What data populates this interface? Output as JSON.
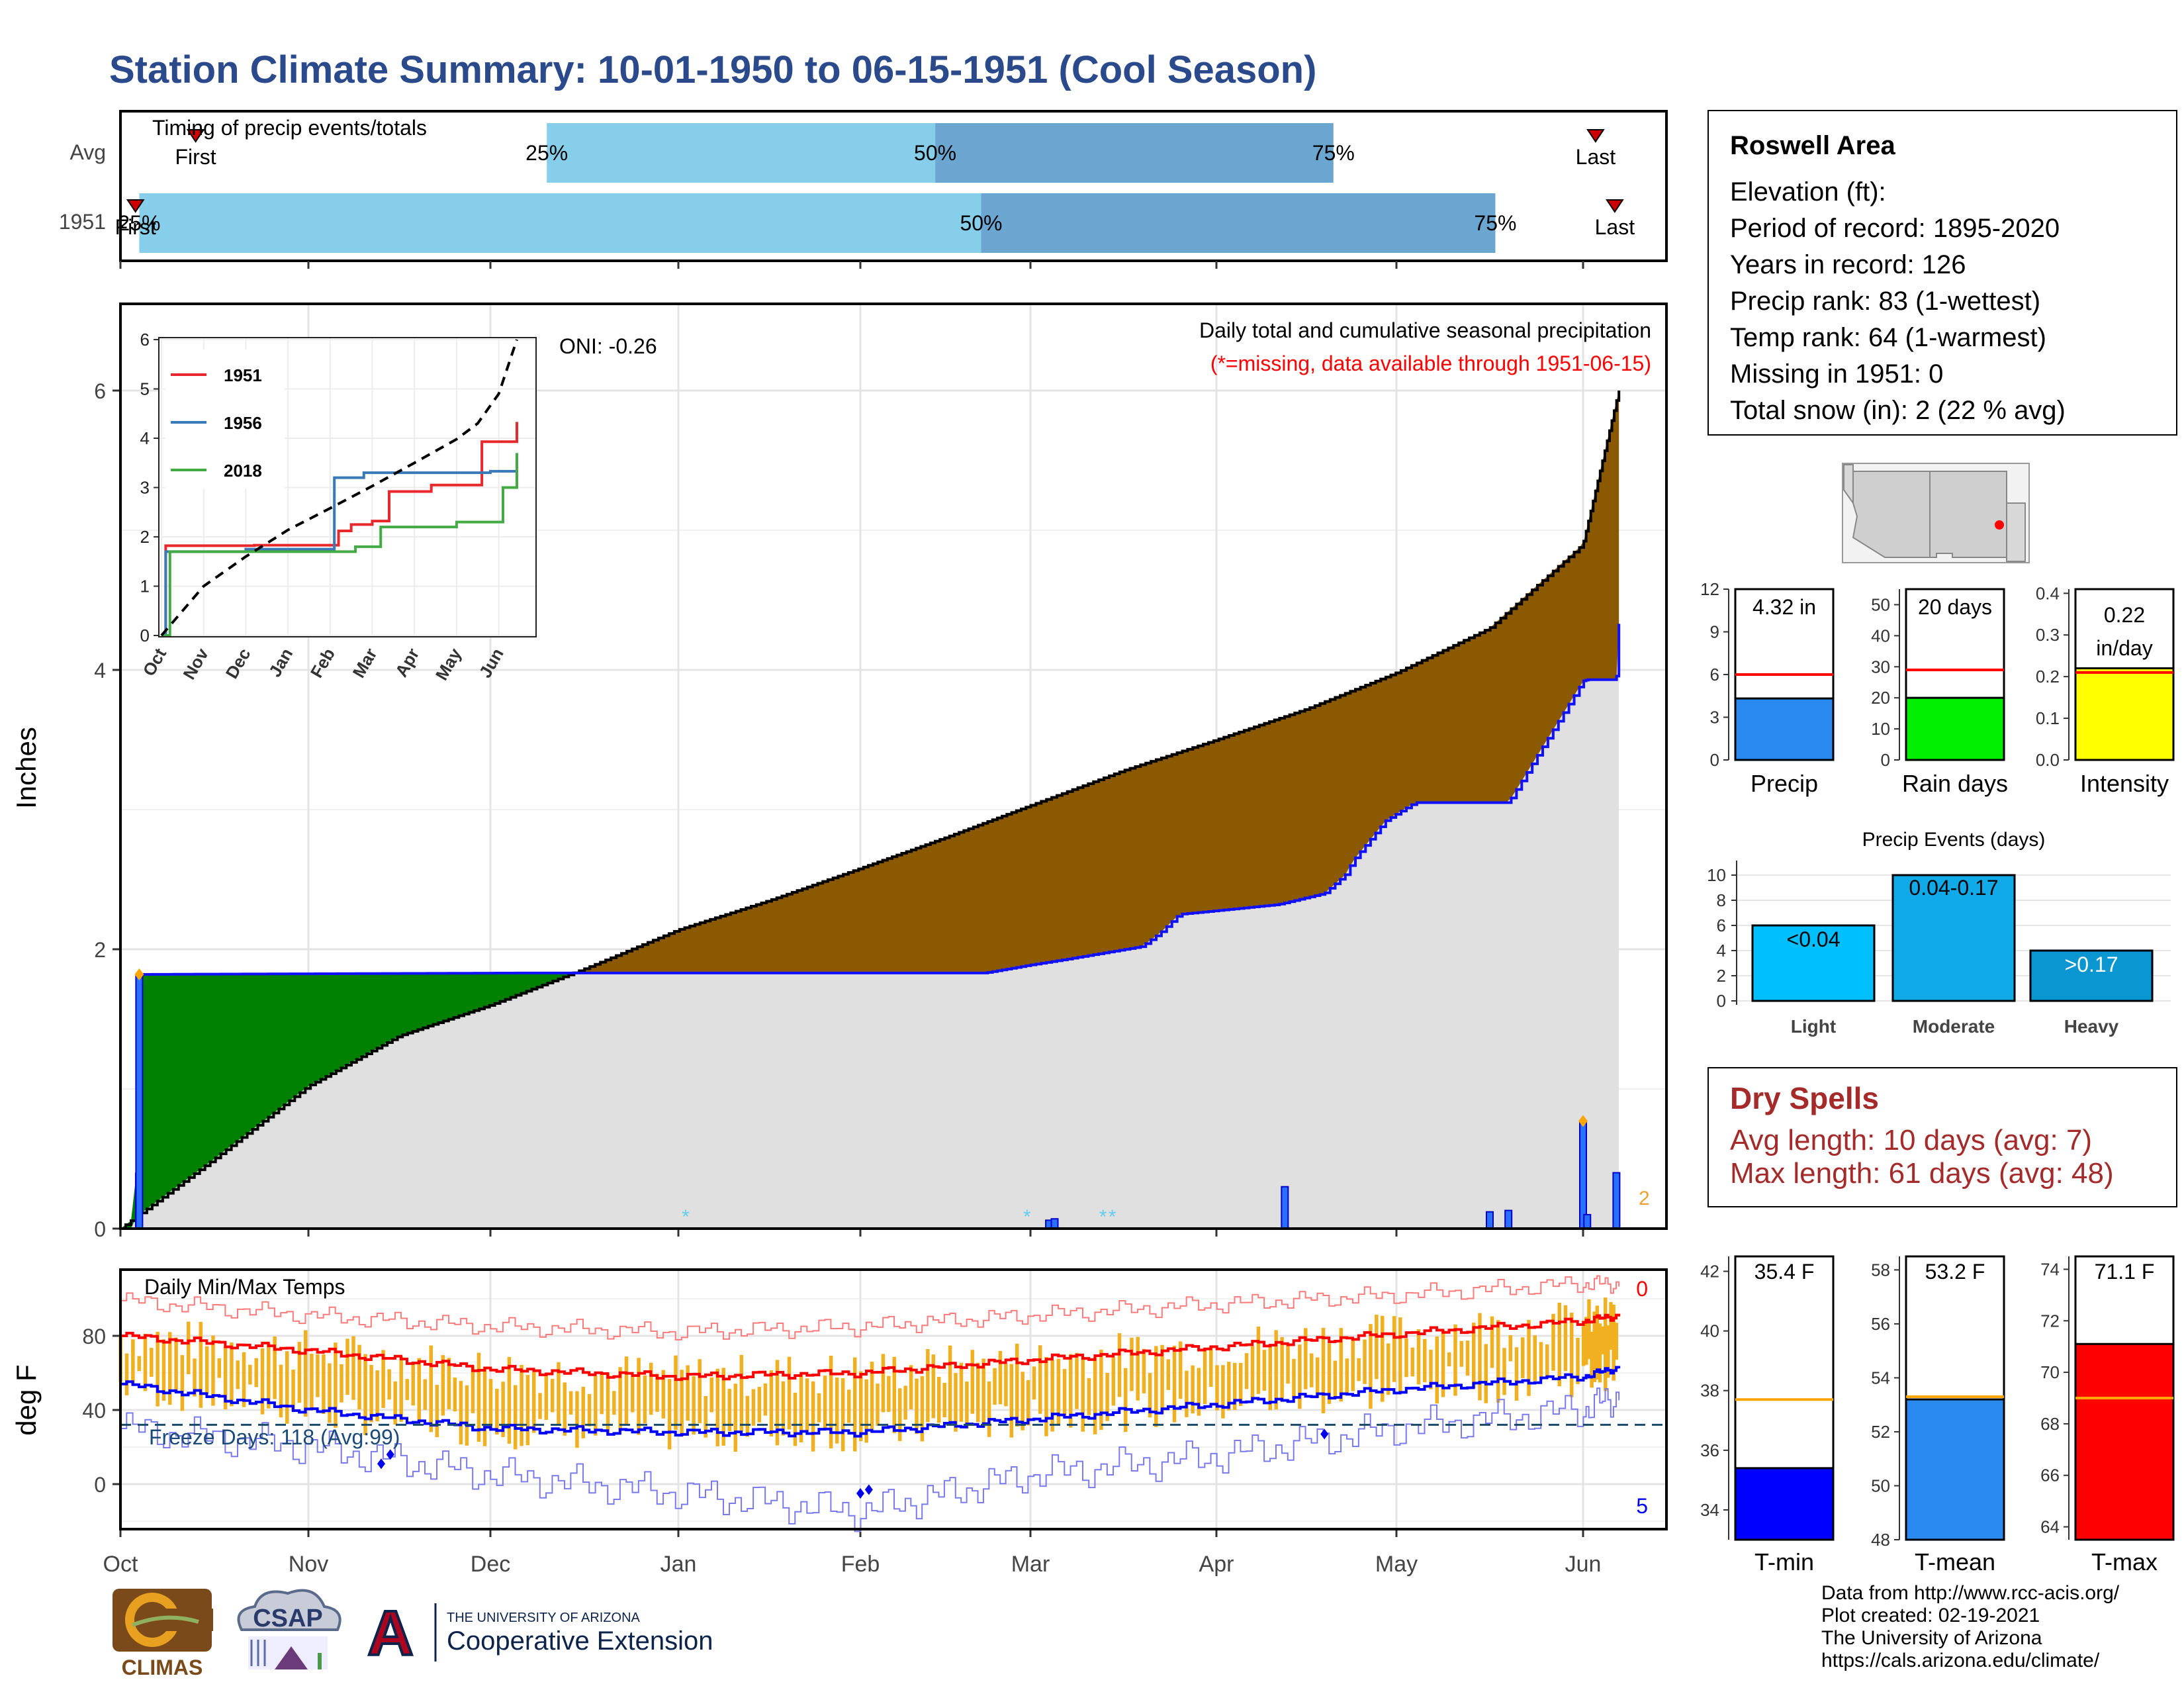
{
  "title": "Station Climate Summary: 10-01-1950 to 06-15-1951 (Cool Season)",
  "colors": {
    "title": "#2a4a8c",
    "light_blue": "#87ceeb",
    "mid_blue": "#6aa6cf",
    "brown": "#8b5a00",
    "green": "#008000",
    "gray": "#e0e0e0",
    "orange": "#f0b020",
    "red": "#ff0000",
    "blue": "#0000ff",
    "dark_red": "#a52a2a"
  },
  "timing": {
    "title": "Timing of precip events/totals",
    "rows": [
      "Avg",
      "1951"
    ],
    "first_label": "First",
    "last_label": "Last",
    "pct25": "25%",
    "pct50": "50%",
    "pct75": "75%",
    "avg_bar": [
      2.3,
      4.44,
      6.65
    ],
    "avg_first": 0.4,
    "avg_last": 8.15,
    "yr_bar": [
      0.1,
      4.71,
      7.53
    ],
    "yr_first": 0.08,
    "yr_last": 8.38
  },
  "precip": {
    "ylabel": "Inches",
    "oni": "ONI: -0.26",
    "label1": "Daily total and cumulative seasonal precipitation",
    "label2": "(*=missing, data available through 1951-06-15)",
    "corner_label": "2",
    "yticks": [
      "0",
      "2",
      "4",
      "6"
    ]
  },
  "inset": {
    "yticks": [
      "0",
      "1",
      "2",
      "3",
      "4",
      "5",
      "6"
    ],
    "xticks": [
      "Oct",
      "Nov",
      "Dec",
      "Jan",
      "Feb",
      "Mar",
      "Apr",
      "May",
      "Jun"
    ],
    "legend": [
      "1951",
      "1956",
      "2018"
    ]
  },
  "temps": {
    "title": "Daily Min/Max Temps",
    "ylabel": "deg F",
    "yticks": [
      "0",
      "40",
      "80"
    ],
    "freeze_label": "Freeze Days: 118 (Avg:99)",
    "top_count": "0",
    "bottom_count": "5"
  },
  "months": [
    "Oct",
    "Nov",
    "Dec",
    "Jan",
    "Feb",
    "Mar",
    "Apr",
    "May",
    "Jun"
  ],
  "station": {
    "name": "Roswell Area",
    "elevation": "Elevation (ft):",
    "period": "Period of record: 1895-2020",
    "years": "Years in record: 126",
    "precip_rank": "Precip rank: 83 (1-wettest)",
    "temp_rank": "Temp rank: 64 (1-warmest)",
    "missing": "Missing in 1951: 0",
    "snow": "Total snow (in): 2 (22 % avg)"
  },
  "minis": {
    "precip": {
      "label": "Precip",
      "value_text": "4.32 in",
      "yticks": [
        "0",
        "3",
        "6",
        "9",
        "12"
      ]
    },
    "raindays": {
      "label": "Rain days",
      "value_text": "20 days",
      "yticks": [
        "0",
        "10",
        "20",
        "30",
        "40",
        "50"
      ]
    },
    "intensity": {
      "label": "Intensity",
      "value_text1": "0.22",
      "value_text2": "in/day",
      "yticks": [
        "0.0",
        "0.1",
        "0.2",
        "0.3",
        "0.4"
      ]
    }
  },
  "events": {
    "title": "Precip Events (days)",
    "yticks": [
      "0",
      "2",
      "4",
      "6",
      "8",
      "10"
    ],
    "categories": [
      "Light",
      "Moderate",
      "Heavy"
    ],
    "bar_labels": [
      "<0.04",
      "0.04-0.17",
      ">0.17"
    ]
  },
  "dry_spells": {
    "title": "Dry Spells",
    "avg": "Avg length: 10 days (avg: 7)",
    "max": "Max length: 61 days (avg: 48)"
  },
  "temp_bars": {
    "tmin": {
      "label": "T-min",
      "value_text": "35.4 F",
      "yticks": [
        "34",
        "36",
        "38",
        "40",
        "42"
      ]
    },
    "tmean": {
      "label": "T-mean",
      "value_text": "53.2 F",
      "yticks": [
        "48",
        "50",
        "52",
        "54",
        "56",
        "58"
      ]
    },
    "tmax": {
      "label": "T-max",
      "value_text": "71.1 F",
      "yticks": [
        "64",
        "66",
        "68",
        "70",
        "72",
        "74"
      ]
    }
  },
  "credits": [
    "Data from http://www.rcc-acis.org/",
    "Plot created: 02-19-2021",
    "The University of Arizona",
    "https://cals.arizona.edu/climate/"
  ],
  "logos": {
    "climas": "CLIMAS",
    "csap": "CSAP",
    "ua_small": "THE UNIVERSITY OF ARIZONA",
    "ua_big": "Cooperative Extension",
    "ua_letter": "A"
  },
  "chart_data": [
    {
      "type": "bar",
      "title": "Timing of precip events/totals",
      "categories": [
        "Avg",
        "1951"
      ],
      "series": [
        {
          "name": "25%",
          "values": [
            2.3,
            0.1
          ]
        },
        {
          "name": "50%",
          "values": [
            4.44,
            4.71
          ]
        },
        {
          "name": "75%",
          "values": [
            6.65,
            7.53
          ]
        }
      ],
      "xlabel": "",
      "ylabel": ""
    },
    {
      "type": "area",
      "title": "Daily total and cumulative seasonal precipitation",
      "xlabel": "",
      "ylabel": "Inches",
      "ylim": [
        0,
        6.5
      ],
      "x_categories": [
        "Oct",
        "Nov",
        "Dec",
        "Jan",
        "Feb",
        "Mar",
        "Apr",
        "May",
        "Jun"
      ],
      "series": [
        {
          "name": "cumulative 1951 (blue line)",
          "x": [
            0,
            0.08,
            0.1,
            2.2,
            4.0,
            4.73,
            5.2,
            5.6,
            5.7,
            5.8,
            6.34,
            6.6,
            6.73,
            6.75,
            6.94,
            7.1,
            7.6,
            8.0,
            8.05,
            8.4,
            8.43
          ],
          "values": [
            0,
            0,
            1.82,
            1.83,
            1.83,
            1.83,
            1.93,
            2.02,
            2.12,
            2.25,
            2.32,
            2.4,
            2.55,
            2.62,
            2.92,
            3.05,
            3.05,
            3.92,
            3.93,
            3.93,
            4.33
          ]
        },
        {
          "name": "cumulative average (black step)",
          "x": [
            0,
            0.5,
            1.0,
            1.5,
            2.0,
            2.5,
            3.0,
            3.5,
            4.0,
            4.5,
            5.0,
            5.5,
            6.0,
            6.5,
            7.0,
            7.5,
            8.0,
            8.43
          ],
          "values": [
            0,
            0.5,
            1.02,
            1.38,
            1.6,
            1.86,
            2.14,
            2.35,
            2.58,
            2.8,
            3.03,
            3.28,
            3.5,
            3.72,
            3.98,
            4.3,
            4.9,
            6.0
          ]
        }
      ],
      "daily_bars": {
        "x": [
          0.1,
          5.1,
          5.13,
          6.38,
          7.5,
          7.6,
          8.0,
          8.05,
          8.4
        ],
        "values": [
          1.82,
          0.06,
          0.07,
          0.3,
          0.12,
          0.13,
          0.77,
          0.1,
          0.4
        ]
      },
      "annotations": [
        "ONI: -0.26",
        "(*=missing, data available through 1951-06-15)"
      ]
    },
    {
      "type": "line",
      "title": "",
      "xlabel": "",
      "ylabel": "",
      "ylim": [
        0,
        6
      ],
      "categories": [
        "Oct",
        "Nov",
        "Dec",
        "Jan",
        "Feb",
        "Mar",
        "Apr",
        "May",
        "Jun"
      ],
      "series": [
        {
          "name": "1951",
          "x": [
            0,
            0.1,
            2.2,
            4.0,
            4.2,
            4.5,
            5.0,
            5.4,
            6.4,
            6.8,
            7.6,
            8.0,
            8.43
          ],
          "values": [
            0,
            1.82,
            1.83,
            1.83,
            2.12,
            2.25,
            2.32,
            2.92,
            3.05,
            3.05,
            3.93,
            3.93,
            4.33
          ]
        },
        {
          "name": "1956",
          "x": [
            0,
            0.1,
            2.0,
            4.0,
            4.1,
            4.8,
            5.5,
            6.8,
            7.8,
            8.43
          ],
          "values": [
            0,
            1.7,
            1.75,
            1.75,
            3.2,
            3.3,
            3.3,
            3.3,
            3.33,
            3.5
          ]
        },
        {
          "name": "2018",
          "x": [
            0,
            0.2,
            2.0,
            4.0,
            4.6,
            5.2,
            6.0,
            7.0,
            7.8,
            8.1,
            8.43
          ],
          "values": [
            0,
            1.7,
            1.7,
            1.7,
            1.8,
            2.2,
            2.2,
            2.3,
            2.3,
            3.0,
            3.7
          ]
        },
        {
          "name": "average",
          "x": [
            0,
            0.5,
            1.0,
            2.0,
            3.0,
            4.0,
            5.0,
            6.0,
            7.0,
            7.5,
            8.0,
            8.43
          ],
          "values": [
            0,
            0.5,
            1.0,
            1.6,
            2.14,
            2.58,
            3.03,
            3.5,
            3.98,
            4.3,
            4.9,
            6.0
          ]
        }
      ]
    },
    {
      "type": "line",
      "title": "Daily Min/Max Temps",
      "xlabel": "",
      "ylabel": "deg F",
      "ylim": [
        -25,
        115
      ],
      "categories": [
        "Oct",
        "Nov",
        "Dec",
        "Jan",
        "Feb",
        "Mar",
        "Apr",
        "May",
        "Jun"
      ],
      "series": [
        {
          "name": "avg max (red)",
          "x": [
            0,
            1,
            2,
            3,
            4,
            5,
            6,
            7,
            8,
            8.43
          ],
          "values": [
            80,
            72,
            62,
            58,
            60,
            67,
            74,
            81,
            88,
            91
          ]
        },
        {
          "name": "avg min (blue)",
          "x": [
            0,
            1,
            2,
            3,
            4,
            5,
            6,
            7,
            8,
            8.43
          ],
          "values": [
            54,
            40,
            30,
            28,
            28,
            35,
            43,
            51,
            58,
            63
          ]
        },
        {
          "name": "record max (thin red)",
          "x": [
            0,
            1,
            2,
            3,
            4,
            5,
            6,
            7,
            8,
            8.43
          ],
          "values": [
            99,
            91,
            85,
            82,
            85,
            91,
            97,
            102,
            108,
            108
          ]
        },
        {
          "name": "record min (thin blue)",
          "x": [
            0,
            1,
            2,
            3,
            4,
            5,
            6,
            7,
            8,
            8.43
          ],
          "values": [
            30,
            20,
            5,
            -5,
            -15,
            5,
            15,
            30,
            40,
            48
          ]
        }
      ],
      "freeze_line": 32,
      "annotations": [
        "Freeze Days: 118 (Avg:99)",
        "0",
        "5"
      ]
    },
    {
      "type": "bar",
      "title": "",
      "categories": [
        "Precip"
      ],
      "values": [
        4.32
      ],
      "reference": 6,
      "ylim": [
        0,
        12
      ],
      "label": "4.32 in"
    },
    {
      "type": "bar",
      "title": "",
      "categories": [
        "Rain days"
      ],
      "values": [
        20
      ],
      "reference": 29,
      "ylim": [
        0,
        55
      ],
      "label": "20 days"
    },
    {
      "type": "bar",
      "title": "",
      "categories": [
        "Intensity"
      ],
      "values": [
        0.22
      ],
      "reference": 0.21,
      "ylim": [
        0,
        0.41
      ],
      "label": "0.22 in/day"
    },
    {
      "type": "bar",
      "title": "Precip Events (days)",
      "categories": [
        "Light",
        "Moderate",
        "Heavy"
      ],
      "values": [
        6,
        10,
        4
      ],
      "ylim": [
        0,
        10.5
      ]
    },
    {
      "type": "bar",
      "title": "",
      "categories": [
        "T-min"
      ],
      "values": [
        35.4
      ],
      "reference": 37.7,
      "ylim": [
        33,
        42.5
      ],
      "label": "35.4 F"
    },
    {
      "type": "bar",
      "title": "",
      "categories": [
        "T-mean"
      ],
      "values": [
        53.2
      ],
      "reference": 53.3,
      "ylim": [
        48,
        58.5
      ],
      "label": "53.2 F"
    },
    {
      "type": "bar",
      "title": "",
      "categories": [
        "T-max"
      ],
      "values": [
        71.1
      ],
      "reference": 69,
      "ylim": [
        63.5,
        74.5
      ],
      "label": "71.1 F"
    }
  ]
}
